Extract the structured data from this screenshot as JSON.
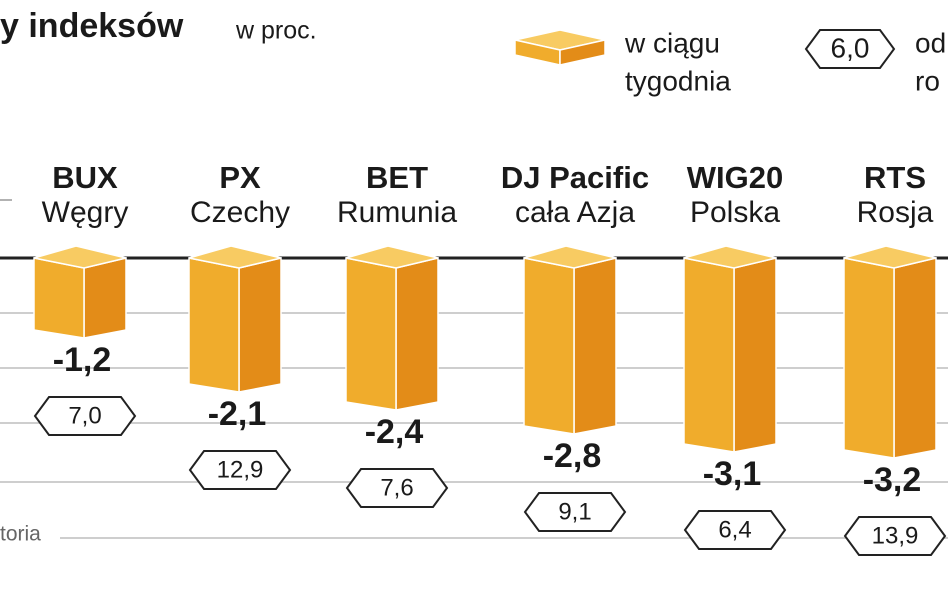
{
  "chart_data": {
    "type": "bar3d",
    "title": "y indeksów",
    "subtitle": "w proc.",
    "categories": [
      [
        "BUX",
        "Węgry"
      ],
      [
        "PX",
        "Czechy"
      ],
      [
        "BET",
        "Rumunia"
      ],
      [
        "DJ Pacific",
        "cała Azja"
      ],
      [
        "WIG20",
        "Polska"
      ],
      [
        "RTS",
        "Rosja"
      ]
    ],
    "series": [
      {
        "name_lines": [
          "w ciągu",
          "tygodnia"
        ],
        "color": "#f0ac2c",
        "values": [
          -1.2,
          -2.1,
          -2.4,
          -2.8,
          -3.1,
          -3.2
        ],
        "value_labels": [
          "-1,2",
          "-2,1",
          "-2,4",
          "-2,8",
          "-3,1",
          "-3,2"
        ]
      },
      {
        "name_lines": [
          "od",
          "ro"
        ],
        "legend_example": "6,0",
        "values": [
          7.0,
          12.9,
          7.6,
          9.1,
          6.4,
          13.9
        ],
        "value_labels": [
          "7,0",
          "12,9",
          "7,6",
          "9,1",
          "6,4",
          "13,9"
        ]
      }
    ],
    "ylim": [
      -4.3,
      0
    ],
    "source": "toria"
  }
}
